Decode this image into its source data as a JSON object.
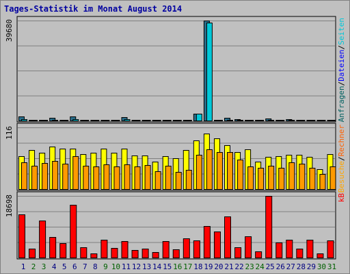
{
  "window": {
    "title": "Tages-Statistik im Monat August 2014"
  },
  "chart_data": {
    "type": "bar",
    "title": "Tages-Statistik im Monat August 2014",
    "categories": [
      "1",
      "2",
      "3",
      "4",
      "5",
      "6",
      "7",
      "8",
      "9",
      "10",
      "11",
      "12",
      "13",
      "14",
      "15",
      "16",
      "17",
      "18",
      "19",
      "20",
      "21",
      "22",
      "23",
      "24",
      "25",
      "26",
      "27",
      "28",
      "29",
      "30",
      "31"
    ],
    "weekend_color": "#006000",
    "weekday_color": "#000080",
    "weekend_days": [
      "2",
      "3",
      "9",
      "10",
      "16",
      "17",
      "23",
      "24",
      "30",
      "31"
    ],
    "panels": [
      {
        "id": "requests",
        "ymax_label": "39680",
        "ymax": 39680,
        "series": [
          {
            "name": "Anfragen",
            "color": "#2a6e8a",
            "values": [
              1500,
              300,
              300,
              1000,
              400,
              1500,
              150,
              150,
              200,
              250,
              1300,
              200,
              200,
              150,
              200,
              150,
              100,
              2600,
              39680,
              350,
              1000,
              500,
              300,
              300,
              700,
              350,
              500,
              300,
              300,
              250,
              350
            ]
          },
          {
            "name": "Dateien",
            "color": "#00c8d8",
            "values": [
              500,
              150,
              150,
              400,
              200,
              500,
              80,
              80,
              100,
              120,
              450,
              100,
              100,
              80,
              100,
              80,
              50,
              2600,
              38800,
              150,
              400,
              200,
              150,
              150,
              300,
              150,
              200,
              150,
              150,
              120,
              150
            ]
          }
        ],
        "legend": [
          {
            "text": "Anfragen",
            "color": "#006060"
          },
          {
            "text": "/",
            "color": "#000000"
          },
          {
            "text": "Dateien",
            "color": "#0000ff"
          },
          {
            "text": "/",
            "color": "#000000"
          },
          {
            "text": "Seiten",
            "color": "#00c8d8"
          }
        ]
      },
      {
        "id": "visits",
        "ymax_label": "116",
        "ymax": 116,
        "series": [
          {
            "name": "Besuche",
            "color": "#ffff00",
            "values": [
              62,
              74,
              68,
              80,
              76,
              76,
              66,
              68,
              76,
              68,
              76,
              63,
              63,
              51,
              62,
              58,
              73,
              92,
              105,
              96,
              82,
              70,
              75,
              51,
              60,
              62,
              64,
              64,
              61,
              37,
              66
            ]
          },
          {
            "name": "Rechner",
            "color": "#ff9a00",
            "values": [
              50,
              44,
              49,
              53,
              48,
              62,
              44,
              42,
              46,
              42,
              47,
              43,
              45,
              33,
              44,
              32,
              36,
              64,
              75,
              70,
              70,
              56,
              42,
              40,
              44,
              40,
              50,
              48,
              40,
              28,
              42
            ]
          }
        ],
        "legend": [
          {
            "text": "Besuche",
            "color": "#ffa500"
          },
          {
            "text": "/",
            "color": "#000000"
          },
          {
            "text": "Rechner",
            "color": "#ff6000"
          }
        ]
      },
      {
        "id": "kbytes",
        "ymax_label": "18698",
        "ymax": 18698,
        "series": [
          {
            "name": "kB",
            "color": "#ff0000",
            "values": [
              13000,
              2600,
              11200,
              6300,
              4400,
              16000,
              3100,
              1300,
              5400,
              2900,
              5000,
              2300,
              2600,
              1600,
              4900,
              2400,
              5800,
              5200,
              9500,
              7800,
              12500,
              3100,
              6400,
              1800,
              18698,
              4600,
              5400,
              2800,
              5400,
              1300,
              5200
            ]
          }
        ],
        "legend": [
          {
            "text": "kB",
            "color": "#ff0000"
          }
        ]
      }
    ]
  }
}
